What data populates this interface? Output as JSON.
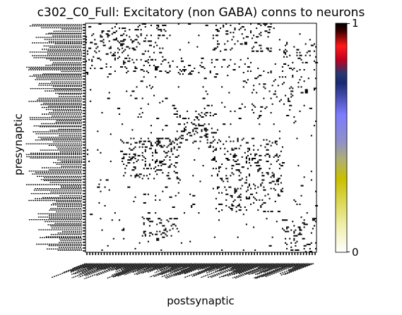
{
  "chart_data": {
    "type": "heatmap",
    "title": "c302_C0_Full: Excitatory (non GABA) conns to neurons",
    "xlabel": "postsynaptic",
    "ylabel": "presynaptic",
    "value_range": [
      0,
      1
    ],
    "colorbar_ticks": [
      "0",
      "1"
    ],
    "colormap": [
      "#ffffff",
      "#c8c000",
      "#8080ff",
      "#0a2a80",
      "#ff1a1a",
      "#000000"
    ],
    "tick_labels_note": "dense overlapping neuron-name tick labels on both axes are illegible"
  }
}
